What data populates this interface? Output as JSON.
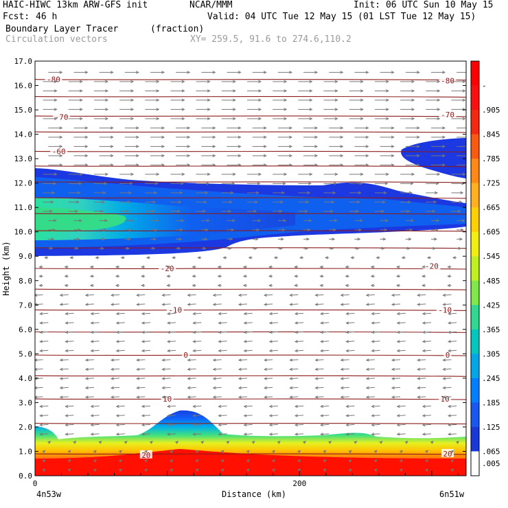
{
  "header": {
    "model": "HAIC-HIWC 13km ARW-GFS init",
    "center": "NCAR/MMM",
    "init": "Init: 06 UTC Sun 10 May 15",
    "fcst_label": "Fcst:",
    "fcst_value": "46 h",
    "valid": "Valid: 04 UTC Tue 12 May 15 (01 LST Tue 12 May 15)",
    "field": "Boundary Layer Tracer",
    "units": "(fraction)",
    "overlay": "Circulation vectors",
    "xy": "XY= 259.5, 91.6 to 274.6,110.2"
  },
  "chart_data": {
    "type": "heatmap",
    "xlabel": "Distance (km)",
    "ylabel": "Height (km)",
    "xlim": [
      0,
      326
    ],
    "ylim": [
      0,
      17
    ],
    "y_ticks": [
      "0.0",
      "1.0",
      "2.0",
      "3.0",
      "4.0",
      "5.0",
      "6.0",
      "7.0",
      "8.0",
      "9.0",
      "10.0",
      "11.0",
      "12.0",
      "13.0",
      "14.0",
      "15.0",
      "16.0",
      "17.0"
    ],
    "x_ticks": [
      {
        "value": 0,
        "label": "0"
      },
      {
        "value": 200,
        "label": "200"
      }
    ],
    "x_end_labels": {
      "left": "4n53w",
      "right": "6n51w"
    },
    "colorbar": {
      "labels": [
        "-",
        ".905",
        ".845",
        ".785",
        ".725",
        ".665",
        ".605",
        ".545",
        ".485",
        ".425",
        ".365",
        ".305",
        ".245",
        ".185",
        ".125",
        ".065",
        ".005"
      ],
      "colors": [
        "#ff0000",
        "#f81010",
        "#f42a10",
        "#f85a10",
        "#fd8a15",
        "#ffb020",
        "#ffd000",
        "#f2ee10",
        "#c0f020",
        "#80e84a",
        "#30d890",
        "#00c8c0",
        "#00a8e8",
        "#0080ff",
        "#1858f0",
        "#1838d8",
        "#ffffff"
      ]
    },
    "contour_labels": [
      {
        "text": "-80",
        "x": 14,
        "y": 16.25
      },
      {
        "text": "-80",
        "x": 312,
        "y": 16.2
      },
      {
        "text": "-70",
        "x": 20,
        "y": 14.7
      },
      {
        "text": "-70",
        "x": 312,
        "y": 14.8
      },
      {
        "text": "-60",
        "x": 18,
        "y": 13.3
      },
      {
        "text": "-20",
        "x": 100,
        "y": 8.5
      },
      {
        "text": "-20",
        "x": 300,
        "y": 8.6
      },
      {
        "text": "-10",
        "x": 106,
        "y": 6.8
      },
      {
        "text": "-10",
        "x": 310,
        "y": 6.8
      },
      {
        "text": "0",
        "x": 114,
        "y": 4.95
      },
      {
        "text": "0",
        "x": 312,
        "y": 4.95
      },
      {
        "text": "10",
        "x": 100,
        "y": 3.15
      },
      {
        "text": "10",
        "x": 310,
        "y": 3.15
      },
      {
        "text": "20",
        "x": 84,
        "y": 0.85
      },
      {
        "text": "20",
        "x": 312,
        "y": 0.9
      }
    ],
    "regions": {
      "upper_plume": "blue layer 9.1-12.5 km across the section with peak 0.4-0.6 near x=0-60 km at 10.0-10.8 km",
      "upper_right_blob": "blue patch 12.2-13.8 km from x=270 km to right edge",
      "boundary_layer": "red >0.9 below 0.9 km, gradient to blue at 1.4-2.0 km, bump to 2.6 km near x=90-130 km"
    },
    "colors": {
      "contour": "#8b1a1a",
      "vector": "#777777"
    }
  }
}
